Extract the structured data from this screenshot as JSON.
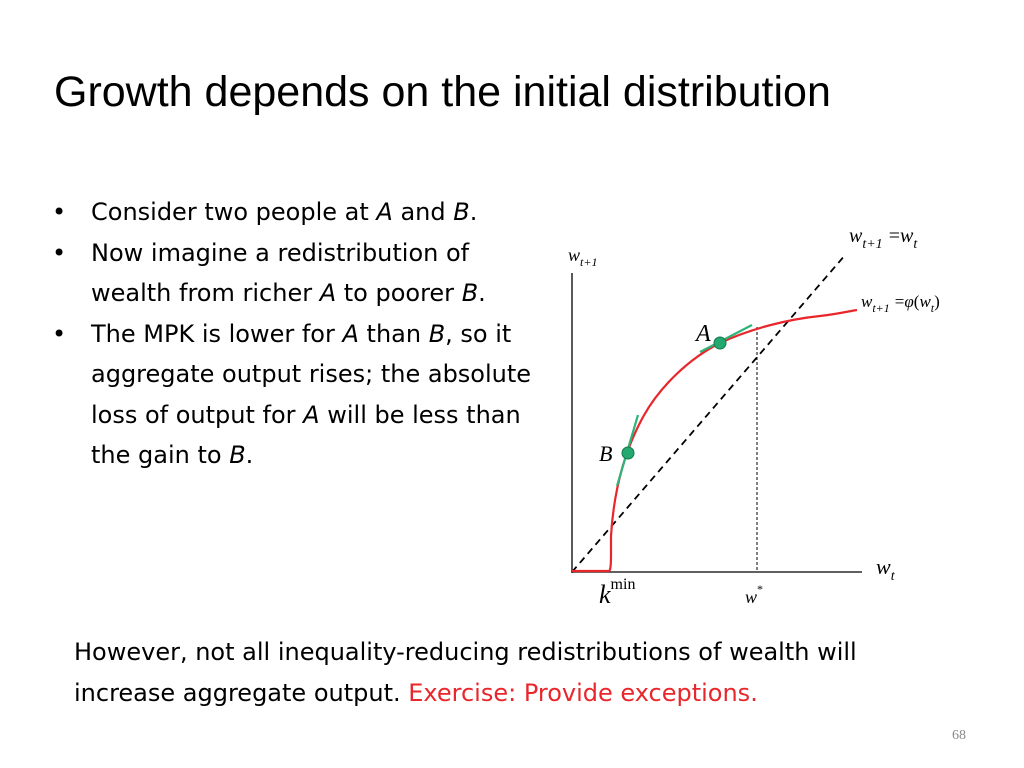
{
  "title": "Growth depends on the initial distribution",
  "bullets": [
    {
      "symbol": "•",
      "parts": [
        {
          "t": "Consider two people at ",
          "i": false
        },
        {
          "t": "A",
          "i": true
        },
        {
          "t": " and ",
          "i": false
        },
        {
          "t": "B",
          "i": true
        },
        {
          "t": ".",
          "i": false
        }
      ]
    },
    {
      "symbol": "•",
      "parts": [
        {
          "t": "Now imagine a redistribution of wealth from richer ",
          "i": false
        },
        {
          "t": "A",
          "i": true
        },
        {
          "t": " to poorer ",
          "i": false
        },
        {
          "t": "B",
          "i": true
        },
        {
          "t": ".",
          "i": false
        }
      ]
    },
    {
      "symbol": "•",
      "parts": [
        {
          "t": "The MPK is lower for ",
          "i": false
        },
        {
          "t": "A",
          "i": true
        },
        {
          "t": " than ",
          "i": false
        },
        {
          "t": "B",
          "i": true
        },
        {
          "t": ", so it aggregate output rises; the absolute loss of output for ",
          "i": false
        },
        {
          "t": "A",
          "i": true
        },
        {
          "t": " will be less than the gain to ",
          "i": false
        },
        {
          "t": "B",
          "i": true
        },
        {
          "t": ".",
          "i": false
        }
      ]
    }
  ],
  "diagram": {
    "y_axis_label": {
      "base": "w",
      "sub": "t+1"
    },
    "x_axis_label": {
      "base": "w",
      "sub": "t"
    },
    "line_45_label": {
      "lhs_base": "w",
      "lhs_sub": "t+1",
      "eq": "=",
      "rhs_base": "w",
      "rhs_sub": "t"
    },
    "curve_label": {
      "lhs_base": "w",
      "lhs_sub": "t+1",
      "eq": "=",
      "func": "φ",
      "open": "(",
      "arg_base": "w",
      "arg_sub": "t",
      "close": ")"
    },
    "point_a": "A",
    "point_b": "B",
    "kmin": {
      "base": "k",
      "sup": "min"
    },
    "wstar": {
      "base": "w",
      "sup": "*"
    },
    "colors": {
      "curve": "#e8262b",
      "tangent": "#2eb37a",
      "point": "#23a86f",
      "axes": "#000000"
    }
  },
  "bottom": {
    "text": "However, not all inequality-reducing redistributions of wealth will increase aggregate output. ",
    "exercise": "Exercise: Provide exceptions."
  },
  "page_number": "68"
}
